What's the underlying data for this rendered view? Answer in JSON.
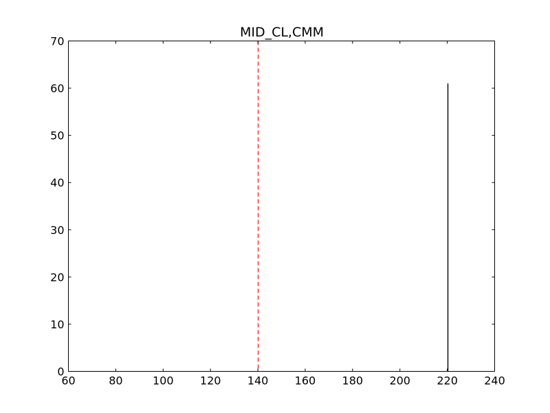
{
  "chart_data": {
    "type": "histogram",
    "title": "MID_CL,CMM",
    "xlabel": "",
    "ylabel": "",
    "xlim": [
      60,
      240
    ],
    "ylim": [
      0,
      70
    ],
    "xticks": [
      60,
      80,
      100,
      120,
      140,
      160,
      180,
      200,
      220,
      240
    ],
    "yticks": [
      0,
      10,
      20,
      30,
      40,
      50,
      60,
      70
    ],
    "grid": false,
    "bars": [
      {
        "x": 220,
        "height": 61
      }
    ],
    "reference_lines": [
      {
        "orientation": "vertical",
        "x": 140,
        "style": "dashed",
        "color": "#ff0000"
      }
    ],
    "colors": {
      "bar": "#000000",
      "axis": "#000000",
      "reference": "#ff0000"
    }
  }
}
